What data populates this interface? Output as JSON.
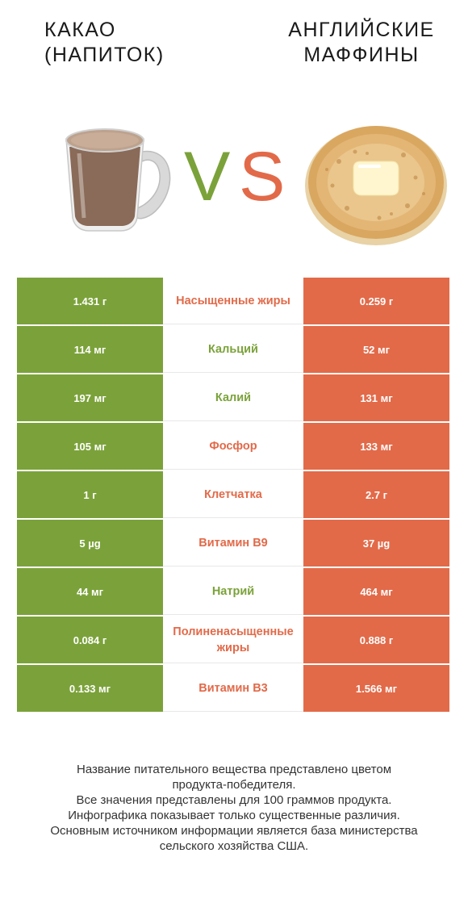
{
  "colors": {
    "green": "#7ba23a",
    "red": "#e26a49"
  },
  "header": {
    "left_title_line1": "Какао",
    "left_title_line2": "(напиток)",
    "right_title_line1": "Английские",
    "right_title_line2": "маффины",
    "vs_v": "V",
    "vs_s": "S"
  },
  "images": {
    "left": "cocoa-mug-image",
    "right": "english-muffin-image"
  },
  "chart_data": {
    "type": "table",
    "columns": [
      "Какао (напиток)",
      "",
      "Английские маффины"
    ],
    "rows": [
      {
        "left": "1.431 г",
        "nutrient": "Насыщенные жиры",
        "right": "0.259 г",
        "winner": "red"
      },
      {
        "left": "114 мг",
        "nutrient": "Кальций",
        "right": "52 мг",
        "winner": "green"
      },
      {
        "left": "197 мг",
        "nutrient": "Калий",
        "right": "131 мг",
        "winner": "green"
      },
      {
        "left": "105 мг",
        "nutrient": "Фосфор",
        "right": "133 мг",
        "winner": "red"
      },
      {
        "left": "1 г",
        "nutrient": "Клетчатка",
        "right": "2.7 г",
        "winner": "red"
      },
      {
        "left": "5 µg",
        "nutrient": "Витамин B9",
        "right": "37 µg",
        "winner": "red"
      },
      {
        "left": "44 мг",
        "nutrient": "Натрий",
        "right": "464 мг",
        "winner": "green"
      },
      {
        "left": "0.084 г",
        "nutrient": "Полиненасыщенные жиры",
        "right": "0.888 г",
        "winner": "red"
      },
      {
        "left": "0.133 мг",
        "nutrient": "Витамин B3",
        "right": "1.566 мг",
        "winner": "red"
      }
    ]
  },
  "footer": {
    "line1": "Название питательного вещества представлено цветом",
    "line2": "продукта-победителя.",
    "line3": "Все значения представлены для 100 граммов продукта.",
    "line4": "Инфографика показывает только существенные различия.",
    "line5": "Основным источником информации является база министерства",
    "line6": "сельского хозяйства США."
  }
}
